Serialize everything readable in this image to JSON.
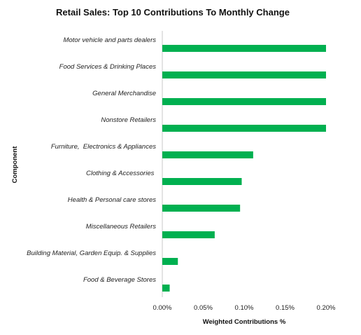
{
  "chart_data": {
    "type": "bar",
    "orientation": "horizontal",
    "title": "Retail Sales: Top 10 Contributions To Monthly Change",
    "xlabel": "Weighted Contributions %",
    "ylabel": "Component",
    "categories": [
      "Motor vehicle and parts dealers",
      "Food Services & Drinking Places",
      "General Merchandise",
      "Nonstore Retailers",
      "Furniture,  Electronics & Appliances",
      "Clothing & Accessories ",
      "Health & Personal care stores",
      "Miscellaneous Retailers",
      "Building Material, Garden Equip. & Supplies",
      "Food & Beverage Stores"
    ],
    "values": [
      0.2,
      0.2,
      0.2,
      0.2,
      0.111,
      0.097,
      0.095,
      0.064,
      0.019,
      0.009
    ],
    "xlim": [
      0,
      0.2
    ],
    "xticks": [
      "0.00%",
      "0.05%",
      "0.10%",
      "0.15%",
      "0.20%"
    ],
    "bar_color": "#00b050",
    "grid": false,
    "legend": "none"
  }
}
